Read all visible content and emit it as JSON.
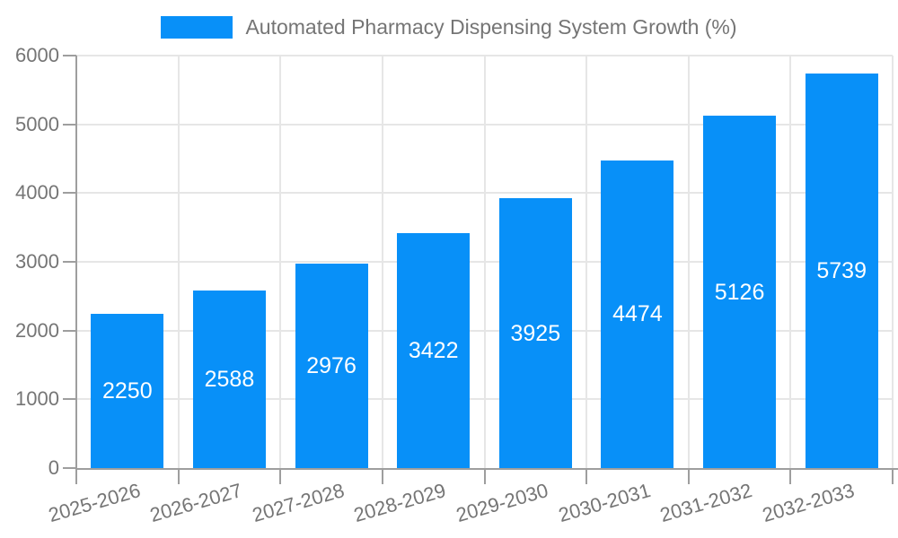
{
  "chart_data": {
    "type": "bar",
    "title": "Automated Pharmacy Dispensing System Growth (%)",
    "categories": [
      "2025-2026",
      "2026-2027",
      "2027-2028",
      "2028-2029",
      "2029-2030",
      "2030-2031",
      "2031-2032",
      "2032-2033"
    ],
    "values": [
      2250,
      2588,
      2976,
      3422,
      3925,
      4474,
      5126,
      5739
    ],
    "value_labels": [
      "2250",
      "2588",
      "2976",
      "3422",
      "3925",
      "4474",
      "5126",
      "5739"
    ],
    "xlabel": "",
    "ylabel": "",
    "ylim": [
      0,
      6000
    ],
    "yticks": [
      0,
      1000,
      2000,
      3000,
      4000,
      5000,
      6000
    ],
    "grid": true,
    "legend_position": "top",
    "colors": {
      "bar": "#0890f8",
      "axis_text": "#757575",
      "grid": "#e6e6e6",
      "axis_line": "#9e9e9e",
      "value_label": "#ffffff",
      "background": "#ffffff"
    }
  }
}
